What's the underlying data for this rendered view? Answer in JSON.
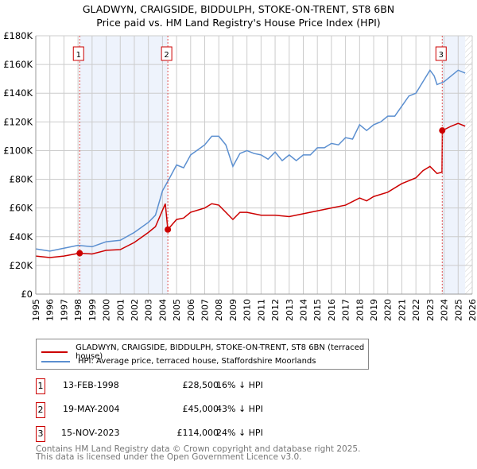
{
  "chart_data": {
    "type": "line",
    "title": "GLADWYN, CRAIGSIDE, BIDDULPH, STOKE-ON-TRENT, ST8 6BN",
    "subtitle": "Price paid vs. HM Land Registry's House Price Index (HPI)",
    "xlim": [
      1995,
      2026
    ],
    "ylim": [
      0,
      180000
    ],
    "x_ticks": [
      "1995",
      "1996",
      "1997",
      "1998",
      "1999",
      "2000",
      "2001",
      "2002",
      "2003",
      "2004",
      "2005",
      "2006",
      "2007",
      "2008",
      "2009",
      "2010",
      "2011",
      "2012",
      "2013",
      "2014",
      "2015",
      "2016",
      "2017",
      "2018",
      "2019",
      "2020",
      "2021",
      "2022",
      "2023",
      "2024",
      "2025",
      "2026"
    ],
    "y_ticks": [
      {
        "v": 0,
        "label": "£0"
      },
      {
        "v": 20000,
        "label": "£20K"
      },
      {
        "v": 40000,
        "label": "£40K"
      },
      {
        "v": 60000,
        "label": "£60K"
      },
      {
        "v": 80000,
        "label": "£80K"
      },
      {
        "v": 100000,
        "label": "£100K"
      },
      {
        "v": 120000,
        "label": "£120K"
      },
      {
        "v": 140000,
        "label": "£140K"
      },
      {
        "v": 160000,
        "label": "£160K"
      },
      {
        "v": 180000,
        "label": "£180K"
      }
    ],
    "grid": true,
    "series": [
      {
        "name": "GLADWYN, CRAIGSIDE, BIDDULPH, STOKE-ON-TRENT, ST8 6BN (terraced house)",
        "color": "#cc0000",
        "x": [
          1995,
          1996,
          1997,
          1998.1,
          1999,
          2000,
          2001,
          2002,
          2003,
          2003.5,
          2004.2,
          2004.38,
          2005,
          2005.5,
          2006,
          2007,
          2007.5,
          2008,
          2009,
          2009.5,
          2010,
          2011,
          2012,
          2013,
          2014,
          2015,
          2016,
          2017,
          2018,
          2018.5,
          2019,
          2020,
          2021,
          2022,
          2022.5,
          2023,
          2023.5,
          2023.85,
          2023.88,
          2024.5,
          2025,
          2025.5
        ],
        "y": [
          26500,
          25500,
          26500,
          28500,
          28000,
          30500,
          31000,
          36000,
          43000,
          47000,
          63000,
          45000,
          52000,
          53000,
          57000,
          60000,
          63000,
          62000,
          52000,
          57000,
          57000,
          55000,
          55000,
          54000,
          56000,
          58000,
          60000,
          62000,
          67000,
          65000,
          68000,
          71000,
          77000,
          81000,
          86000,
          89000,
          84000,
          85000,
          114000,
          117000,
          119000,
          117000
        ]
      },
      {
        "name": "HPI: Average price, terraced house, Staffordshire Moorlands",
        "color": "#5b8fd0",
        "x": [
          1995,
          1996,
          1997,
          1998,
          1999,
          2000,
          2001,
          2002,
          2003,
          2003.5,
          2004,
          2004.4,
          2005,
          2005.5,
          2006,
          2007,
          2007.5,
          2008,
          2008.5,
          2009,
          2009.5,
          2010,
          2010.5,
          2011,
          2011.5,
          2012,
          2012.5,
          2013,
          2013.5,
          2014,
          2014.5,
          2015,
          2015.5,
          2016,
          2016.5,
          2017,
          2017.5,
          2018,
          2018.5,
          2019,
          2019.5,
          2020,
          2020.5,
          2021,
          2021.5,
          2022,
          2022.5,
          2023,
          2023.3,
          2023.5,
          2024,
          2024.5,
          2025,
          2025.5
        ],
        "y": [
          31500,
          30000,
          32000,
          34000,
          33000,
          36500,
          37500,
          43000,
          50000,
          55000,
          72000,
          79000,
          90000,
          88000,
          97000,
          104000,
          110000,
          110000,
          104000,
          89000,
          98000,
          100000,
          98000,
          97000,
          94000,
          99000,
          93000,
          97000,
          93000,
          97000,
          97000,
          102000,
          102000,
          105000,
          104000,
          109000,
          108000,
          118000,
          114000,
          118000,
          120000,
          124000,
          124000,
          131000,
          138000,
          140000,
          148000,
          156000,
          152000,
          146000,
          148000,
          152000,
          156000,
          154000
        ]
      }
    ],
    "sales": [
      {
        "n": "1",
        "x": 1998.12,
        "y": 28500,
        "date": "13-FEB-1998",
        "price": "£28,500",
        "hpi": "16% ↓ HPI"
      },
      {
        "n": "2",
        "x": 2004.38,
        "y": 45000,
        "date": "19-MAY-2004",
        "price": "£45,000",
        "hpi": "43% ↓ HPI"
      },
      {
        "n": "3",
        "x": 2023.87,
        "y": 114000,
        "date": "15-NOV-2023",
        "price": "£114,000",
        "hpi": "24% ↓ HPI"
      }
    ]
  },
  "footer": {
    "line1": "Contains HM Land Registry data © Crown copyright and database right 2025.",
    "line2": "This data is licensed under the Open Government Licence v3.0."
  }
}
